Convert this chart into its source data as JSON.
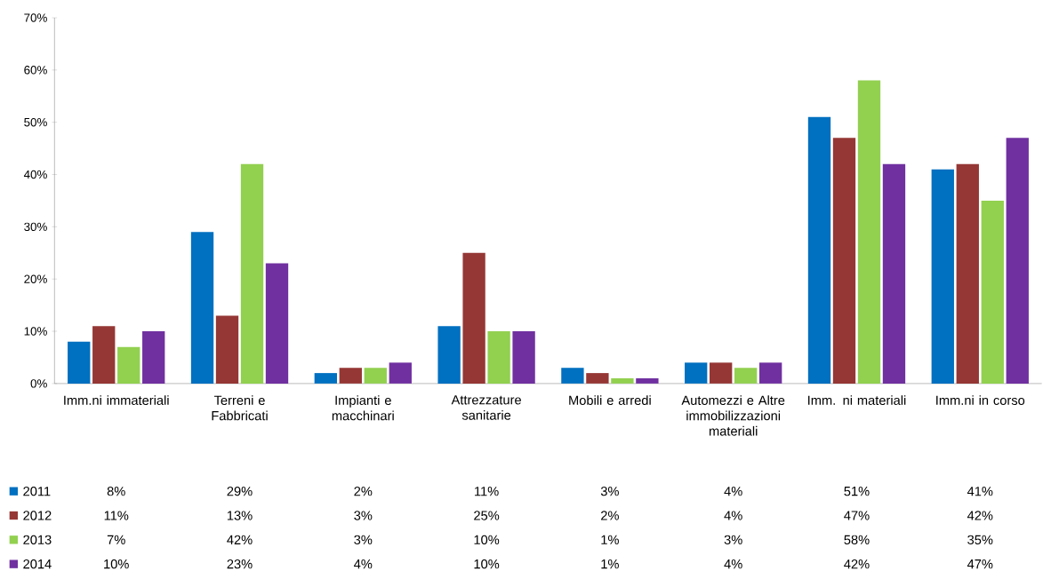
{
  "chart_data": {
    "type": "bar",
    "categories": [
      "Imm.ni immateriali",
      "Terreni e Fabbricati",
      "Impianti e macchinari",
      "Attrezzature sanitarie",
      "Mobili e arredi",
      "Automezzi e Altre immobilizzazioni materiali",
      "Imm. ni materiali",
      "Imm.ni in corso"
    ],
    "series": [
      {
        "name": "2011",
        "color": "#0070c0",
        "values": [
          8,
          29,
          2,
          11,
          3,
          4,
          51,
          41
        ],
        "value_labels": [
          "8%",
          "29%",
          "2%",
          "11%",
          "3%",
          "4%",
          "51%",
          "41%"
        ]
      },
      {
        "name": "2012",
        "color": "#953735",
        "values": [
          11,
          13,
          3,
          25,
          2,
          4,
          47,
          42
        ],
        "value_labels": [
          "11%",
          "13%",
          "3%",
          "25%",
          "2%",
          "4%",
          "47%",
          "42%"
        ]
      },
      {
        "name": "2013",
        "color": "#92d050",
        "values": [
          7,
          42,
          3,
          10,
          1,
          3,
          58,
          35
        ],
        "value_labels": [
          "7%",
          "42%",
          "3%",
          "10%",
          "1%",
          "3%",
          "58%",
          "35%"
        ]
      },
      {
        "name": "2014",
        "color": "#7030a0",
        "values": [
          10,
          23,
          4,
          10,
          1,
          4,
          42,
          47
        ],
        "value_labels": [
          "10%",
          "23%",
          "4%",
          "10%",
          "1%",
          "4%",
          "42%",
          "47%"
        ]
      }
    ],
    "ylim": [
      0,
      70
    ],
    "yticks": [
      {
        "value": 0,
        "label": "0%"
      },
      {
        "value": 10,
        "label": "10%"
      },
      {
        "value": 20,
        "label": "20%"
      },
      {
        "value": 30,
        "label": "30%"
      },
      {
        "value": 40,
        "label": "40%"
      },
      {
        "value": 50,
        "label": "50%"
      },
      {
        "value": 60,
        "label": "60%"
      },
      {
        "value": 70,
        "label": "70%"
      }
    ],
    "legend": "bottom",
    "grid": false
  }
}
